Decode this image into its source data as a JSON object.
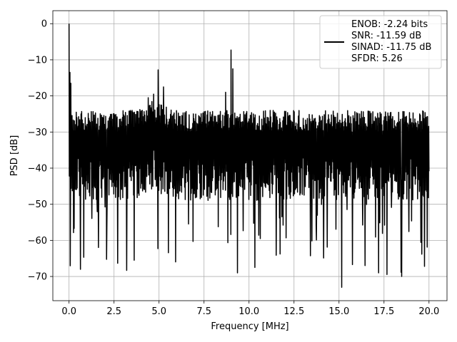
{
  "chart_data": {
    "type": "line",
    "xlabel": "Frequency [MHz]",
    "ylabel": "PSD [dB]",
    "xlim": [
      -0.9,
      21.0
    ],
    "ylim": [
      -76.7,
      3.6
    ],
    "grid": true,
    "x_ticks": [
      0.0,
      2.5,
      5.0,
      7.5,
      10.0,
      12.5,
      15.0,
      17.5,
      20.0
    ],
    "x_tick_labels": [
      "0.0",
      "2.5",
      "5.0",
      "7.5",
      "10.0",
      "12.5",
      "15.0",
      "17.5",
      "20.0"
    ],
    "y_ticks": [
      0,
      -10,
      -20,
      -30,
      -40,
      -50,
      -60,
      -70
    ],
    "y_tick_labels": [
      "0",
      "−10",
      "−20",
      "−30",
      "−40",
      "−50",
      "−60",
      "−70"
    ],
    "legend": {
      "placement": "top-right",
      "entries": [
        "ENOB: -2.24 bits",
        "SNR: -11.59 dB",
        "SINAD: -11.75 dB",
        "SFDR: 5.26"
      ]
    },
    "series": [
      {
        "color": "#000000",
        "x_start": 0.0,
        "x_end": 20.0,
        "points": 1200,
        "noise_floor_typical": [
          -45,
          -23
        ],
        "noise_floor_minimum": -73,
        "peaks": [
          {
            "x": 0.0,
            "y": 0.0
          },
          {
            "x": 0.05,
            "y": -13.5
          },
          {
            "x": 0.1,
            "y": -16.5
          },
          {
            "x": 4.4,
            "y": -20.5
          },
          {
            "x": 4.7,
            "y": -19.5
          },
          {
            "x": 4.95,
            "y": -12.8
          },
          {
            "x": 5.25,
            "y": -17.5
          },
          {
            "x": 8.7,
            "y": -19.0
          },
          {
            "x": 9.0,
            "y": -7.3
          },
          {
            "x": 9.1,
            "y": -12.5
          },
          {
            "x": 15.15,
            "y": -73.0
          },
          {
            "x": 17.2,
            "y": -69.0
          }
        ]
      }
    ]
  }
}
